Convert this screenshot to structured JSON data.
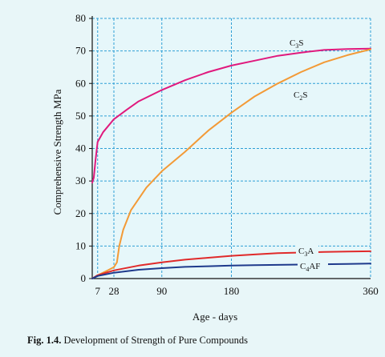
{
  "chart_data": {
    "type": "line",
    "xlabel": "Age - days",
    "ylabel": "Comprehensive Strength MPa",
    "xlim": [
      0,
      360
    ],
    "ylim": [
      0,
      80
    ],
    "x_ticks": [
      7,
      28,
      90,
      180,
      360
    ],
    "y_ticks": [
      0,
      10,
      20,
      30,
      40,
      50,
      60,
      70,
      80
    ],
    "grid": true,
    "grid_style": "dashed",
    "series": [
      {
        "name": "C3S",
        "label_main": "C",
        "label_sub": "3",
        "label_tail": "S",
        "color": "#e0197d",
        "points": [
          [
            0,
            29.5
          ],
          [
            2,
            31
          ],
          [
            4,
            36
          ],
          [
            7,
            42
          ],
          [
            14,
            45
          ],
          [
            28,
            49
          ],
          [
            45,
            52
          ],
          [
            60,
            54.5
          ],
          [
            90,
            58
          ],
          [
            120,
            61
          ],
          [
            150,
            63.5
          ],
          [
            180,
            65.5
          ],
          [
            210,
            67
          ],
          [
            240,
            68.5
          ],
          [
            270,
            69.5
          ],
          [
            300,
            70.3
          ],
          [
            330,
            70.6
          ],
          [
            360,
            70.7
          ]
        ]
      },
      {
        "name": "C2S",
        "label_main": "C",
        "label_sub": "2",
        "label_tail": "S",
        "color": "#f39a36",
        "points": [
          [
            0,
            0
          ],
          [
            7,
            1
          ],
          [
            20,
            2.5
          ],
          [
            28,
            3.5
          ],
          [
            32,
            5
          ],
          [
            35,
            10
          ],
          [
            40,
            15
          ],
          [
            50,
            21
          ],
          [
            70,
            28
          ],
          [
            90,
            33
          ],
          [
            120,
            39
          ],
          [
            150,
            45.5
          ],
          [
            180,
            51
          ],
          [
            210,
            56
          ],
          [
            240,
            60
          ],
          [
            270,
            63.5
          ],
          [
            300,
            66.5
          ],
          [
            330,
            68.7
          ],
          [
            360,
            70.5
          ]
        ]
      },
      {
        "name": "C3A",
        "label_main": "C",
        "label_sub": "3",
        "label_tail": "A",
        "color": "#e02a2a",
        "points": [
          [
            0,
            0
          ],
          [
            7,
            1
          ],
          [
            28,
            2.5
          ],
          [
            60,
            4
          ],
          [
            90,
            5
          ],
          [
            120,
            5.8
          ],
          [
            150,
            6.4
          ],
          [
            180,
            7
          ],
          [
            210,
            7.4
          ],
          [
            240,
            7.8
          ],
          [
            270,
            8
          ],
          [
            300,
            8.2
          ],
          [
            330,
            8.3
          ],
          [
            360,
            8.4
          ]
        ]
      },
      {
        "name": "C4AF",
        "label_main": "C",
        "label_sub": "4",
        "label_tail": "AF",
        "color": "#1e3a8c",
        "points": [
          [
            0,
            0
          ],
          [
            7,
            0.8
          ],
          [
            28,
            1.8
          ],
          [
            60,
            2.7
          ],
          [
            90,
            3.2
          ],
          [
            120,
            3.6
          ],
          [
            150,
            3.8
          ],
          [
            180,
            4
          ],
          [
            210,
            4.1
          ],
          [
            240,
            4.2
          ],
          [
            270,
            4.3
          ],
          [
            300,
            4.4
          ],
          [
            330,
            4.5
          ],
          [
            360,
            4.6
          ]
        ]
      }
    ]
  },
  "caption": {
    "bold": "Fig. 1.4.",
    "text": " Development of Strength of Pure Compounds"
  }
}
